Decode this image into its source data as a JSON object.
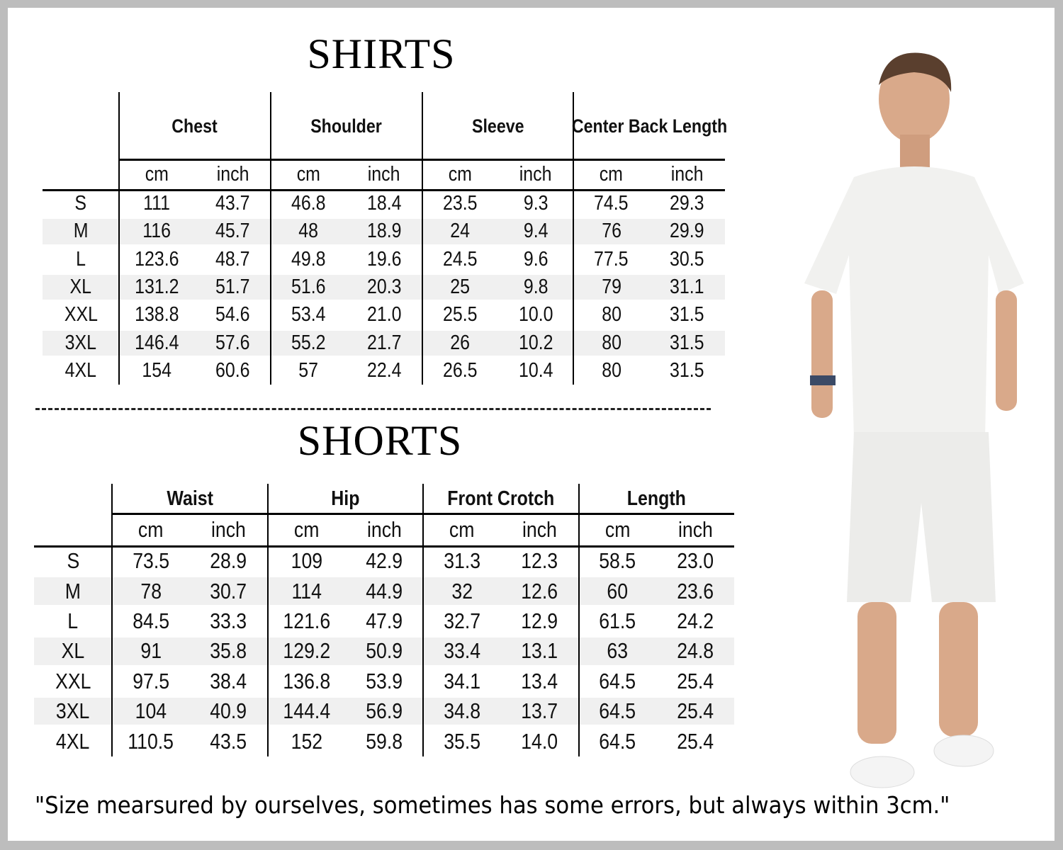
{
  "shirts": {
    "title": "SHIRTS",
    "groups": [
      "Chest",
      "Shoulder",
      "Sleeve",
      "Center Back Length"
    ],
    "units": [
      "cm",
      "inch"
    ],
    "rows": [
      {
        "size": "S",
        "values": [
          "111",
          "43.7",
          "46.8",
          "18.4",
          "23.5",
          "9.3",
          "74.5",
          "29.3"
        ]
      },
      {
        "size": "M",
        "values": [
          "116",
          "45.7",
          "48",
          "18.9",
          "24",
          "9.4",
          "76",
          "29.9"
        ]
      },
      {
        "size": "L",
        "values": [
          "123.6",
          "48.7",
          "49.8",
          "19.6",
          "24.5",
          "9.6",
          "77.5",
          "30.5"
        ]
      },
      {
        "size": "XL",
        "values": [
          "131.2",
          "51.7",
          "51.6",
          "20.3",
          "25",
          "9.8",
          "79",
          "31.1"
        ]
      },
      {
        "size": "XXL",
        "values": [
          "138.8",
          "54.6",
          "53.4",
          "21.0",
          "25.5",
          "10.0",
          "80",
          "31.5"
        ]
      },
      {
        "size": "3XL",
        "values": [
          "146.4",
          "57.6",
          "55.2",
          "21.7",
          "26",
          "10.2",
          "80",
          "31.5"
        ]
      },
      {
        "size": "4XL",
        "values": [
          "154",
          "60.6",
          "57",
          "22.4",
          "26.5",
          "10.4",
          "80",
          "31.5"
        ]
      }
    ]
  },
  "shorts": {
    "title": "SHORTS",
    "groups": [
      "Waist",
      "Hip",
      "Front Crotch",
      "Length"
    ],
    "units": [
      "cm",
      "inch"
    ],
    "rows": [
      {
        "size": "S",
        "values": [
          "73.5",
          "28.9",
          "109",
          "42.9",
          "31.3",
          "12.3",
          "58.5",
          "23.0"
        ]
      },
      {
        "size": "M",
        "values": [
          "78",
          "30.7",
          "114",
          "44.9",
          "32",
          "12.6",
          "60",
          "23.6"
        ]
      },
      {
        "size": "L",
        "values": [
          "84.5",
          "33.3",
          "121.6",
          "47.9",
          "32.7",
          "12.9",
          "61.5",
          "24.2"
        ]
      },
      {
        "size": "XL",
        "values": [
          "91",
          "35.8",
          "129.2",
          "50.9",
          "33.4",
          "13.1",
          "63",
          "24.8"
        ]
      },
      {
        "size": "XXL",
        "values": [
          "97.5",
          "38.4",
          "136.8",
          "53.9",
          "34.1",
          "13.4",
          "64.5",
          "25.4"
        ]
      },
      {
        "size": "3XL",
        "values": [
          "104",
          "40.9",
          "144.4",
          "56.9",
          "34.8",
          "13.7",
          "64.5",
          "25.4"
        ]
      },
      {
        "size": "4XL",
        "values": [
          "110.5",
          "43.5",
          "152",
          "59.8",
          "35.5",
          "14.0",
          "64.5",
          "25.4"
        ]
      }
    ]
  },
  "note": "\"Size mearsured by ourselves, sometimes has some errors, but always within 3cm.\"",
  "colors": {
    "frame": "#bdbdbd",
    "row_shade": "#f0f0f0",
    "text": "#111111"
  }
}
